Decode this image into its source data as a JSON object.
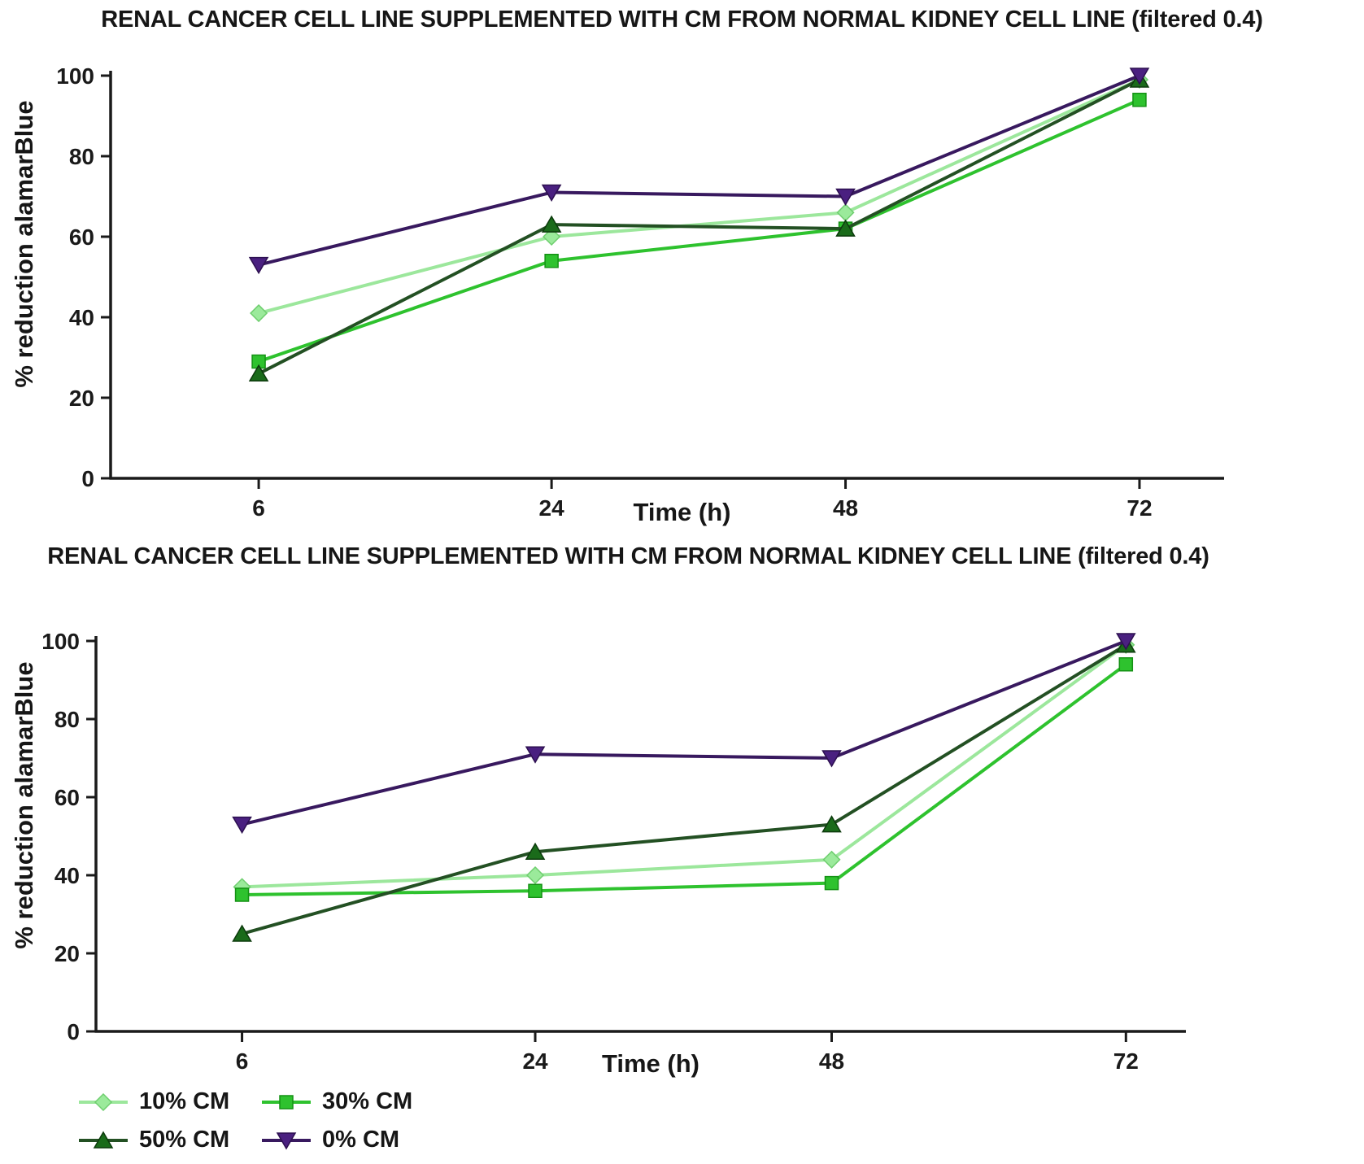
{
  "figure": {
    "background": "#ffffff",
    "axis_color": "#1a1a1a"
  },
  "chart_data": [
    {
      "type": "line",
      "title": "RENAL CANCER CELL LINE SUPPLEMENTED WITH CM FROM NORMAL KIDNEY CELL LINE (filtered 0.4)",
      "xlabel": "Time (h)",
      "ylabel": "% reduction alamarBlue",
      "x": [
        6,
        24,
        48,
        72
      ],
      "x_tick_labels": [
        "6",
        "24",
        "48",
        "72"
      ],
      "y_ticks": [
        0,
        20,
        40,
        60,
        80,
        100
      ],
      "ylim": [
        0,
        100
      ],
      "grid": false,
      "series": [
        {
          "name": "10% CM",
          "marker": "diamond",
          "line_color": "#9ce79c",
          "marker_color": "#9bea9b",
          "marker_edge": "#6fce6f",
          "values": [
            41,
            60,
            66,
            99
          ]
        },
        {
          "name": "30% CM",
          "marker": "square",
          "line_color": "#2ec22e",
          "marker_color": "#2ec22e",
          "marker_edge": "#149114",
          "values": [
            29,
            54,
            62,
            94
          ]
        },
        {
          "name": "50% CM",
          "marker": "triangle-up",
          "line_color": "#235023",
          "marker_color": "#1a6b1a",
          "marker_edge": "#0c3a0c",
          "values": [
            26,
            63,
            62,
            99
          ]
        },
        {
          "name": "0% CM",
          "marker": "triangle-down",
          "line_color": "#38195f",
          "marker_color": "#4a2080",
          "marker_edge": "#2d1050",
          "values": [
            53,
            71,
            70,
            100
          ]
        }
      ]
    },
    {
      "type": "line",
      "title": "RENAL CANCER CELL LINE SUPPLEMENTED WITH CM FROM NORMAL KIDNEY CELL LINE (filtered 0.4)",
      "xlabel": "Time (h)",
      "ylabel": "% reduction alamarBlue",
      "x": [
        6,
        24,
        48,
        72
      ],
      "x_tick_labels": [
        "6",
        "24",
        "48",
        "72"
      ],
      "y_ticks": [
        0,
        20,
        40,
        60,
        80,
        100
      ],
      "ylim": [
        0,
        100
      ],
      "grid": false,
      "series": [
        {
          "name": "10% CM",
          "marker": "diamond",
          "line_color": "#9ce79c",
          "marker_color": "#9bea9b",
          "marker_edge": "#6fce6f",
          "values": [
            37,
            40,
            44,
            99
          ]
        },
        {
          "name": "30% CM",
          "marker": "square",
          "line_color": "#2ec22e",
          "marker_color": "#2ec22e",
          "marker_edge": "#149114",
          "values": [
            35,
            36,
            38,
            94
          ]
        },
        {
          "name": "50% CM",
          "marker": "triangle-up",
          "line_color": "#235023",
          "marker_color": "#1a6b1a",
          "marker_edge": "#0c3a0c",
          "values": [
            25,
            46,
            53,
            99
          ]
        },
        {
          "name": "0% CM",
          "marker": "triangle-down",
          "line_color": "#38195f",
          "marker_color": "#4a2080",
          "marker_edge": "#2d1050",
          "values": [
            53,
            71,
            70,
            100
          ]
        }
      ]
    }
  ],
  "legend": {
    "position": "bottom-left",
    "order": [
      0,
      1,
      2,
      3
    ]
  }
}
